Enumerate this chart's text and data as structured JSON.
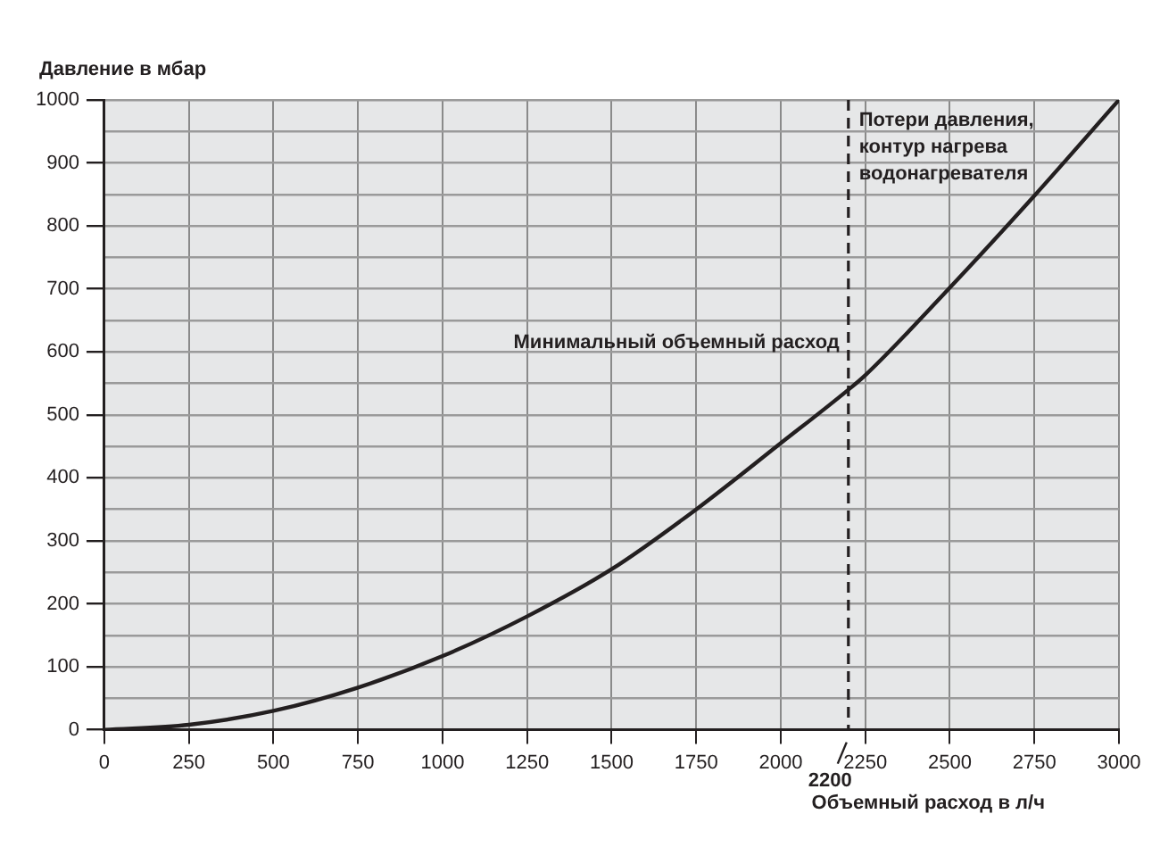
{
  "chart_data": {
    "type": "line",
    "xlabel": "Объемный расход в л/ч",
    "ylabel": "Давление в мбар",
    "x": [
      0,
      250,
      500,
      750,
      1000,
      1250,
      1500,
      1750,
      2000,
      2200,
      2250,
      2500,
      2750,
      3000
    ],
    "series": [
      {
        "name": "Потери давления, контур нагрева водонагревателя",
        "color": "#231f20",
        "values": [
          0,
          8,
          30,
          67,
          117,
          180,
          255,
          350,
          455,
          540,
          563,
          702,
          848,
          1000
        ]
      }
    ],
    "xlim": [
      0,
      3000
    ],
    "xticks": [
      0,
      250,
      500,
      750,
      1000,
      1250,
      1500,
      1750,
      2000,
      2250,
      2500,
      2750,
      3000
    ],
    "ylim": [
      0,
      1000
    ],
    "yticks": [
      0,
      {
        "value": 50,
        "label": null
      },
      100,
      {
        "value": 150,
        "label": null
      },
      200,
      {
        "value": 250,
        "label": null
      },
      300,
      {
        "value": 350,
        "label": null
      },
      400,
      {
        "value": 450,
        "label": null
      },
      500,
      {
        "value": 550,
        "label": null
      },
      600,
      {
        "value": 650,
        "label": null
      },
      700,
      {
        "value": 750,
        "label": null
      },
      800,
      {
        "value": 850,
        "label": null
      },
      900,
      {
        "value": 950,
        "label": null
      },
      1000
    ],
    "ref_lines": [
      {
        "axis": "x",
        "value": 2200,
        "label": "Минимальный объемный расход",
        "color": "#231f20",
        "line_style": "dashed"
      }
    ],
    "annotations": [
      {
        "text": "2200",
        "x": 2200
      }
    ],
    "grid": true,
    "marker": "none",
    "line_style": "solid"
  }
}
